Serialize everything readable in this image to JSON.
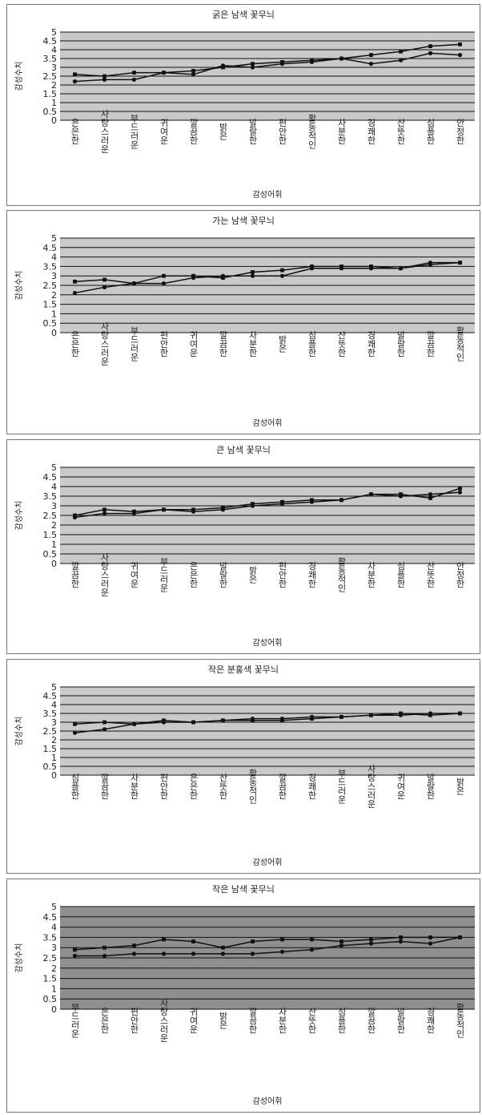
{
  "chart_data": [
    {
      "type": "line",
      "title": "굵은 남색 꽃무늬",
      "ylabel": "감성수치",
      "xlabel": "감성어휘",
      "ylim": [
        0,
        5
      ],
      "yticks": [
        "0",
        "0.5",
        "1",
        "1.5",
        "2",
        "2.5",
        "3",
        "3.5",
        "4",
        "4.5",
        "5"
      ],
      "categories": [
        "은은한",
        "사랑스러운",
        "부드러운",
        "귀여운",
        "깔끔한",
        "밝은",
        "발랄한",
        "편안한",
        "활동적인",
        "차분한",
        "경쾌한",
        "산뜻한",
        "심플한",
        "안정한"
      ],
      "series": [
        {
          "values": [
            2.2,
            2.3,
            2.3,
            2.7,
            2.6,
            3.1,
            3.0,
            3.2,
            3.3,
            3.5,
            3.2,
            3.4,
            3.8,
            3.7
          ]
        },
        {
          "values": [
            2.6,
            2.5,
            2.7,
            2.7,
            2.8,
            3.0,
            3.2,
            3.3,
            3.4,
            3.5,
            3.7,
            3.9,
            4.2,
            4.3
          ]
        }
      ],
      "grid": true,
      "background": "#c9c9c9"
    },
    {
      "type": "line",
      "title": "가는 남색 꽃무늬",
      "ylabel": "감성수치",
      "xlabel": "감성어휘",
      "ylim": [
        0,
        5
      ],
      "yticks": [
        "0",
        "0.5",
        "1",
        "1.5",
        "2",
        "2.5",
        "3",
        "3.5",
        "4",
        "4.5",
        "5"
      ],
      "categories": [
        "은은한",
        "사랑스러운",
        "부드러운",
        "편안한",
        "귀여운",
        "깔끔한",
        "차분한",
        "밝은",
        "심플한",
        "산뜻한",
        "경쾌한",
        "발랄한",
        "깔끔한",
        "활동적인"
      ],
      "series": [
        {
          "values": [
            2.1,
            2.4,
            2.6,
            2.6,
            2.9,
            3.0,
            3.0,
            3.0,
            3.4,
            3.4,
            3.4,
            3.4,
            3.7,
            3.7
          ]
        },
        {
          "values": [
            2.7,
            2.8,
            2.6,
            3.0,
            3.0,
            2.9,
            3.2,
            3.3,
            3.5,
            3.5,
            3.5,
            3.4,
            3.6,
            3.7
          ]
        }
      ],
      "grid": true,
      "background": "#c9c9c9"
    },
    {
      "type": "line",
      "title": "큰 남색 꽃무늬",
      "ylabel": "감성수치",
      "xlabel": "감성어휘",
      "ylim": [
        0,
        5
      ],
      "yticks": [
        "0",
        "0.5",
        "1",
        "1.5",
        "2",
        "2.5",
        "3",
        "3.5",
        "4",
        "4.5",
        "5"
      ],
      "categories": [
        "깔끔한",
        "사랑스러운",
        "귀여운",
        "부드러운",
        "은은한",
        "발랄한",
        "밝은",
        "편안한",
        "경쾌한",
        "활동적인",
        "차분한",
        "심플한",
        "산뜻한",
        "안정한"
      ],
      "series": [
        {
          "values": [
            2.4,
            2.6,
            2.6,
            2.8,
            2.7,
            2.8,
            3.0,
            3.1,
            3.2,
            3.3,
            3.6,
            3.5,
            3.6,
            3.7
          ]
        },
        {
          "values": [
            2.5,
            2.8,
            2.7,
            2.8,
            2.8,
            2.9,
            3.1,
            3.2,
            3.3,
            3.3,
            3.6,
            3.6,
            3.4,
            3.9
          ]
        }
      ],
      "grid": true,
      "background": "#c9c9c9"
    },
    {
      "type": "line",
      "title": "작은 분홍색 꽃무늬",
      "ylabel": "감성수치",
      "xlabel": "감성어휘",
      "ylim": [
        0,
        5
      ],
      "yticks": [
        "0",
        "0.5",
        "1",
        "1.5",
        "2",
        "2.5",
        "3",
        "3.5",
        "4",
        "4.5",
        "5"
      ],
      "categories": [
        "심플한",
        "깔끔한",
        "차분한",
        "편안한",
        "은은한",
        "산뜻한",
        "활동적인",
        "깔끔한",
        "경쾌한",
        "부드러운",
        "사랑스러운",
        "귀여운",
        "발랄한",
        "밝은"
      ],
      "series": [
        {
          "values": [
            2.4,
            2.6,
            2.9,
            3.0,
            3.0,
            3.1,
            3.2,
            3.2,
            3.3,
            3.3,
            3.4,
            3.4,
            3.5,
            3.5
          ]
        },
        {
          "values": [
            2.9,
            3.0,
            2.9,
            3.1,
            3.0,
            3.1,
            3.1,
            3.1,
            3.2,
            3.3,
            3.4,
            3.5,
            3.4,
            3.5
          ]
        }
      ],
      "grid": true,
      "background": "#c9c9c9"
    },
    {
      "type": "line",
      "title": "작은 남색 꽃무늬",
      "ylabel": "감성수치",
      "xlabel": "감성어휘",
      "ylim": [
        0,
        5
      ],
      "yticks": [
        "0",
        "0.5",
        "1",
        "1.5",
        "2",
        "2.5",
        "3",
        "3.5",
        "4",
        "4.5",
        "5"
      ],
      "categories": [
        "부드러운",
        "은은한",
        "편안한",
        "사랑스러운",
        "귀여운",
        "밝은",
        "깔끔한",
        "차분한",
        "산뜻한",
        "심플한",
        "깔끔한",
        "발랄한",
        "경쾌한",
        "활동적인"
      ],
      "series": [
        {
          "values": [
            2.6,
            2.6,
            2.7,
            2.7,
            2.7,
            2.7,
            2.7,
            2.8,
            2.9,
            3.1,
            3.2,
            3.3,
            3.2,
            3.5
          ]
        },
        {
          "values": [
            2.9,
            3.0,
            3.1,
            3.4,
            3.3,
            3.0,
            3.3,
            3.4,
            3.4,
            3.3,
            3.4,
            3.5,
            3.5,
            3.5
          ]
        }
      ],
      "grid": true,
      "background": "#8f8f8f"
    }
  ]
}
